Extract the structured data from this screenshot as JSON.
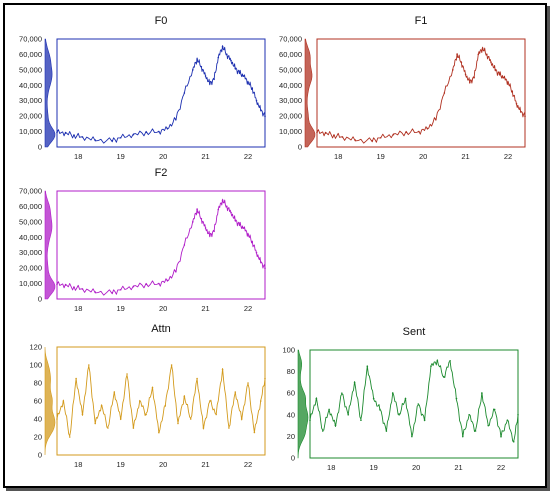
{
  "chart_data": [
    {
      "type": "line",
      "title": "F0",
      "color": "#1c2fb0",
      "ylim": [
        0,
        70000
      ],
      "yticks": [
        "0",
        "10,000",
        "20,000",
        "30,000",
        "40,000",
        "50,000",
        "60,000",
        "70,000"
      ],
      "xlim": [
        17.5,
        22.4
      ],
      "xticks": [
        "18",
        "19",
        "20",
        "21",
        "22"
      ],
      "marginal": "density curve on left y-axis",
      "x": [
        17.5,
        17.7,
        17.9,
        18.1,
        18.4,
        18.8,
        19.0,
        19.3,
        19.6,
        19.9,
        20.1,
        20.3,
        20.5,
        20.7,
        20.8,
        20.9,
        21.0,
        21.1,
        21.2,
        21.3,
        21.4,
        21.5,
        21.6,
        21.7,
        21.8,
        21.9,
        22.0,
        22.1,
        22.2,
        22.3,
        22.4
      ],
      "y": [
        9500,
        9000,
        7500,
        6500,
        4500,
        4000,
        6000,
        8000,
        9500,
        10000,
        12000,
        18000,
        35000,
        50000,
        57000,
        52000,
        46000,
        41000,
        44000,
        58000,
        65000,
        60000,
        56000,
        51000,
        48000,
        46000,
        42000,
        38000,
        30000,
        24000,
        20000
      ]
    },
    {
      "type": "line",
      "title": "F1",
      "color": "#b03020",
      "ylim": [
        0,
        70000
      ],
      "yticks": [
        "0",
        "10,000",
        "20,000",
        "30,000",
        "40,000",
        "50,000",
        "60,000",
        "70,000"
      ],
      "xlim": [
        17.5,
        22.4
      ],
      "xticks": [
        "18",
        "19",
        "20",
        "21",
        "22"
      ],
      "marginal": "density curve on left y-axis",
      "x": [
        17.5,
        17.7,
        17.9,
        18.1,
        18.4,
        18.8,
        19.0,
        19.3,
        19.6,
        19.9,
        20.1,
        20.3,
        20.5,
        20.7,
        20.8,
        20.9,
        21.0,
        21.1,
        21.2,
        21.3,
        21.4,
        21.5,
        21.6,
        21.7,
        21.8,
        21.9,
        22.0,
        22.1,
        22.2,
        22.3,
        22.4
      ],
      "y": [
        9500,
        9000,
        7500,
        6500,
        4500,
        4000,
        6000,
        8000,
        9500,
        10000,
        12000,
        18000,
        35000,
        50000,
        60000,
        55000,
        47000,
        42000,
        45000,
        60000,
        64000,
        60000,
        55000,
        50000,
        47000,
        45000,
        42000,
        36000,
        28000,
        23000,
        20000
      ]
    },
    {
      "type": "line",
      "title": "F2",
      "color": "#b01cc8",
      "ylim": [
        0,
        70000
      ],
      "yticks": [
        "0",
        "10,000",
        "20,000",
        "30,000",
        "40,000",
        "50,000",
        "60,000",
        "70,000"
      ],
      "xlim": [
        17.5,
        22.4
      ],
      "xticks": [
        "18",
        "19",
        "20",
        "21",
        "22"
      ],
      "marginal": "density curve on left y-axis",
      "x": [
        17.5,
        17.7,
        17.9,
        18.1,
        18.4,
        18.8,
        19.0,
        19.3,
        19.6,
        19.9,
        20.1,
        20.3,
        20.5,
        20.7,
        20.8,
        20.9,
        21.0,
        21.1,
        21.2,
        21.3,
        21.4,
        21.5,
        21.6,
        21.7,
        21.8,
        21.9,
        22.0,
        22.1,
        22.2,
        22.3,
        22.4
      ],
      "y": [
        9500,
        9000,
        7500,
        6500,
        4500,
        4000,
        6000,
        8000,
        9500,
        10000,
        12000,
        18000,
        35000,
        50000,
        58000,
        52000,
        46000,
        41000,
        44000,
        58000,
        64000,
        60000,
        56000,
        51000,
        48000,
        46000,
        42000,
        37000,
        30000,
        24000,
        20000
      ]
    },
    {
      "type": "line",
      "title": "Attn",
      "color": "#d39a1c",
      "ylim": [
        0,
        120
      ],
      "yticks": [
        "0",
        "20",
        "40",
        "60",
        "80",
        "100",
        "120"
      ],
      "xlim": [
        17.5,
        22.4
      ],
      "xticks": [
        "18",
        "19",
        "20",
        "21",
        "22"
      ],
      "marginal": "density curve on left y-axis",
      "x": [
        17.5,
        17.65,
        17.8,
        17.95,
        18.1,
        18.25,
        18.4,
        18.55,
        18.7,
        18.85,
        19.0,
        19.15,
        19.3,
        19.45,
        19.6,
        19.75,
        19.9,
        20.05,
        20.2,
        20.35,
        20.5,
        20.65,
        20.8,
        20.95,
        21.1,
        21.25,
        21.4,
        21.55,
        21.7,
        21.85,
        22.0,
        22.15,
        22.3,
        22.4
      ],
      "y": [
        40,
        60,
        20,
        85,
        45,
        100,
        35,
        55,
        30,
        70,
        40,
        90,
        30,
        60,
        45,
        75,
        25,
        55,
        100,
        35,
        65,
        40,
        85,
        30,
        60,
        45,
        95,
        30,
        70,
        40,
        80,
        25,
        60,
        85
      ]
    },
    {
      "type": "line",
      "title": "Sent",
      "color": "#1c8a2e",
      "ylim": [
        0,
        100
      ],
      "yticks": [
        "0",
        "20",
        "40",
        "60",
        "80",
        "100"
      ],
      "xlim": [
        17.5,
        22.4
      ],
      "xticks": [
        "18",
        "19",
        "20",
        "21",
        "22"
      ],
      "marginal": "density curve on left y-axis",
      "x": [
        17.5,
        17.65,
        17.8,
        17.95,
        18.1,
        18.25,
        18.4,
        18.55,
        18.7,
        18.85,
        19.0,
        19.15,
        19.3,
        19.45,
        19.6,
        19.75,
        19.9,
        20.05,
        20.2,
        20.35,
        20.5,
        20.65,
        20.8,
        20.95,
        21.1,
        21.25,
        21.4,
        21.55,
        21.7,
        21.85,
        22.0,
        22.15,
        22.3,
        22.4
      ],
      "y": [
        35,
        55,
        25,
        45,
        30,
        60,
        40,
        70,
        35,
        85,
        55,
        45,
        25,
        60,
        40,
        55,
        20,
        50,
        35,
        85,
        90,
        75,
        90,
        55,
        20,
        40,
        25,
        60,
        30,
        45,
        20,
        35,
        15,
        40
      ]
    }
  ]
}
